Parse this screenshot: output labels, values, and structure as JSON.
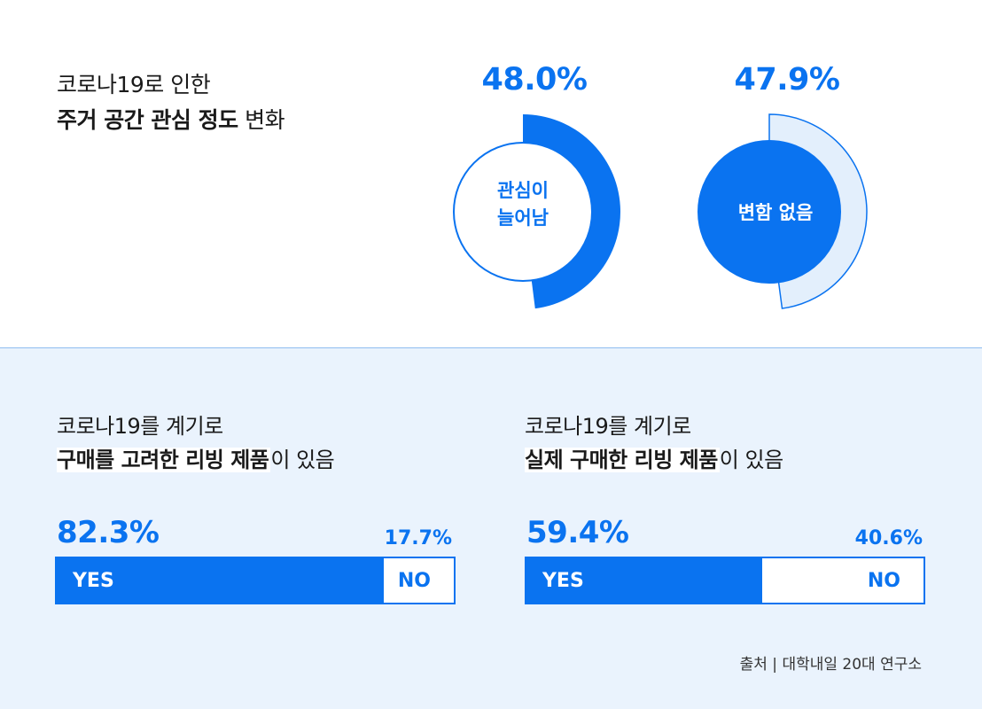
{
  "colors": {
    "accent": "#0a73f0",
    "light_fill": "#e3effc",
    "panel_bg": "#eaf3fd"
  },
  "header": {
    "title_line1": "코로나19로 인한",
    "title_line2_strong": "주거 공간 관심 정도",
    "title_line2_rest": " 변화"
  },
  "chart_data": [
    {
      "type": "pie",
      "title": "코로나19로 인한 주거 공간 관심 정도 변화",
      "slices": [
        {
          "label": "관심이 늘어남",
          "value": 48.0,
          "display": "48.0%"
        },
        {
          "label": "변함 없음",
          "value": 47.9,
          "display": "47.9%"
        }
      ]
    },
    {
      "type": "bar",
      "title": "코로나19를 계기로 구매를 고려한 리빙 제품이 있음",
      "categories": [
        "YES",
        "NO"
      ],
      "values": [
        82.3,
        17.7
      ]
    },
    {
      "type": "bar",
      "title": "코로나19를 계기로 실제 구매한 리빙 제품이 있음",
      "categories": [
        "YES",
        "NO"
      ],
      "values": [
        59.4,
        40.6
      ]
    }
  ],
  "donuts": [
    {
      "pct": "48.0%",
      "label_line1": "관심이",
      "label_line2": "늘어남"
    },
    {
      "pct": "47.9%",
      "label": "변함 없음"
    }
  ],
  "bars": [
    {
      "title_line1": "코로나19를 계기로",
      "title_strong": "구매를 고려한 리빙 제품",
      "title_rest": "이 있음",
      "yes_pct": "82.3%",
      "no_pct": "17.7%",
      "yes_label": "YES",
      "no_label": "NO"
    },
    {
      "title_line1": "코로나19를 계기로",
      "title_strong": "실제 구매한 리빙 제품",
      "title_rest": "이 있음",
      "yes_pct": "59.4%",
      "no_pct": "40.6%",
      "yes_label": "YES",
      "no_label": "NO"
    }
  ],
  "source": "출처 | 대학내일 20대 연구소"
}
